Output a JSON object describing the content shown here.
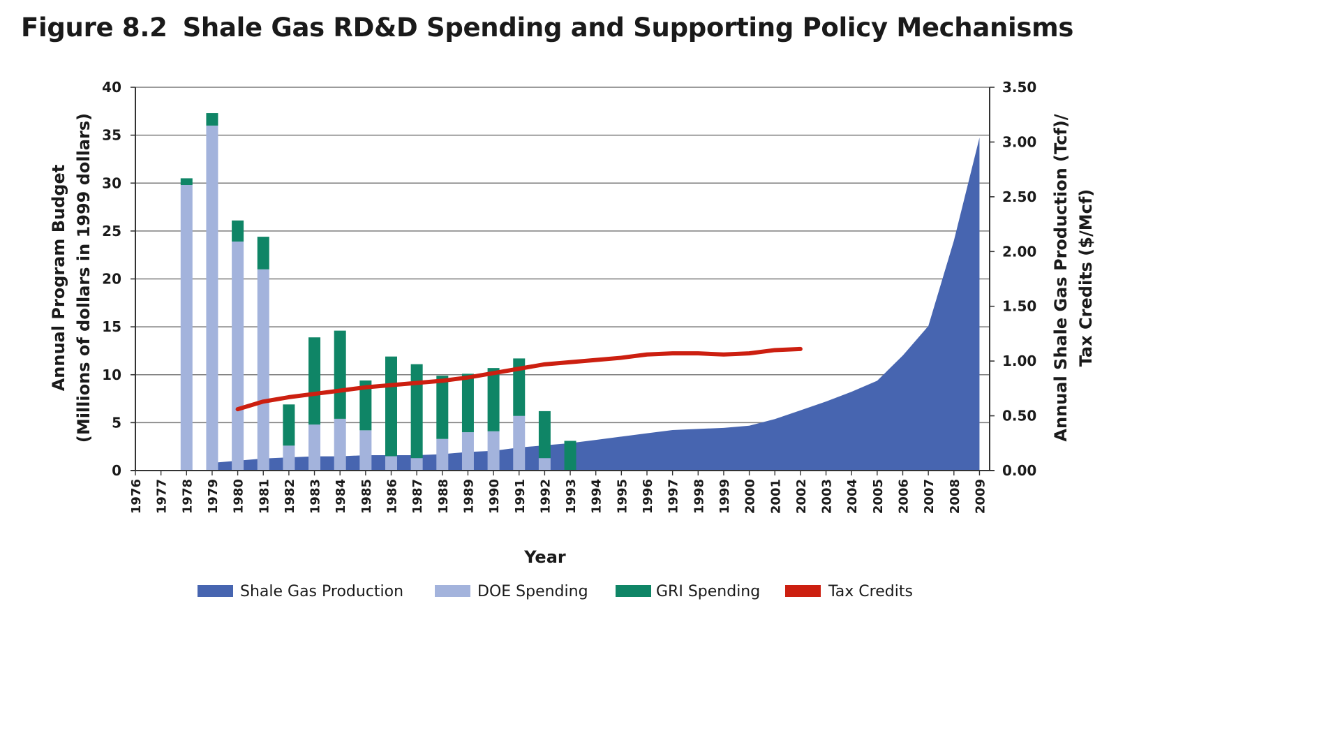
{
  "title": {
    "figure_number": "Figure 8.2",
    "text": "Shale Gas RD&D Spending and Supporting Policy Mechanisms"
  },
  "colors": {
    "production": "#4765b0",
    "doe": "#a3b3dc",
    "gri": "#0f8566",
    "tax": "#cc1f10",
    "grid": "#7a7a7a",
    "axis": "#333333"
  },
  "chart_data": {
    "type": "bar",
    "title": "Shale Gas RD&D Spending and Supporting Policy Mechanisms",
    "xlabel": "Year",
    "ylabel_lines": [
      "Annual Program Budget",
      "(Millions of dollars in 1999 dollars)"
    ],
    "y2label_lines": [
      "Annual Shale Gas Production (Tcf)/",
      "Tax Credits ($/Mcf)"
    ],
    "ylim": [
      0,
      40
    ],
    "y_ticks": [
      0,
      5,
      10,
      15,
      20,
      25,
      30,
      35,
      40
    ],
    "y2lim": [
      0,
      3.5
    ],
    "y2_ticks": [
      "0.00",
      "0.50",
      "1.00",
      "1.50",
      "2.00",
      "2.50",
      "3.00",
      "3.50"
    ],
    "grid": true,
    "legend_position": "bottom",
    "categories": [
      1976,
      1977,
      1978,
      1979,
      1980,
      1981,
      1982,
      1983,
      1984,
      1985,
      1986,
      1987,
      1988,
      1989,
      1990,
      1991,
      1992,
      1993,
      1994,
      1995,
      1996,
      1997,
      1998,
      1999,
      2000,
      2001,
      2002,
      2003,
      2004,
      2005,
      2006,
      2007,
      2008,
      2009
    ],
    "series": [
      {
        "name": "Shale Gas Production",
        "type": "area",
        "axis": "right",
        "x": [
          1979,
          1980,
          1981,
          1982,
          1983,
          1984,
          1985,
          1986,
          1987,
          1988,
          1989,
          1990,
          1991,
          1992,
          1993,
          1994,
          1995,
          1996,
          1997,
          1998,
          1999,
          2000,
          2001,
          2002,
          2003,
          2004,
          2005,
          2006,
          2007,
          2008,
          2009
        ],
        "values": [
          0.07,
          0.09,
          0.11,
          0.12,
          0.13,
          0.13,
          0.14,
          0.14,
          0.14,
          0.15,
          0.17,
          0.18,
          0.21,
          0.23,
          0.25,
          0.28,
          0.31,
          0.34,
          0.37,
          0.38,
          0.39,
          0.41,
          0.47,
          0.55,
          0.63,
          0.72,
          0.82,
          1.05,
          1.32,
          2.1,
          3.04
        ]
      },
      {
        "name": "DOE Spending",
        "type": "stacked-bar",
        "axis": "left",
        "x": [
          1978,
          1979,
          1980,
          1981,
          1982,
          1983,
          1984,
          1985,
          1986,
          1987,
          1988,
          1989,
          1990,
          1991,
          1992,
          1993
        ],
        "values": [
          29.8,
          36.0,
          23.9,
          21.0,
          2.6,
          4.8,
          5.4,
          4.2,
          1.5,
          1.3,
          3.3,
          4.0,
          4.1,
          5.7,
          1.3,
          0
        ]
      },
      {
        "name": "GRI Spending",
        "type": "stacked-bar",
        "axis": "left",
        "x": [
          1978,
          1979,
          1980,
          1981,
          1982,
          1983,
          1984,
          1985,
          1986,
          1987,
          1988,
          1989,
          1990,
          1991,
          1992,
          1993
        ],
        "values": [
          0.7,
          1.3,
          2.2,
          3.4,
          4.3,
          9.1,
          9.2,
          5.2,
          10.4,
          9.8,
          6.6,
          6.1,
          6.6,
          6.0,
          4.9,
          3.1
        ]
      },
      {
        "name": "Tax Credits",
        "type": "line",
        "axis": "right",
        "x": [
          1980,
          1981,
          1982,
          1983,
          1984,
          1985,
          1986,
          1987,
          1988,
          1989,
          1990,
          1991,
          1992,
          1993,
          1994,
          1995,
          1996,
          1997,
          1998,
          1999,
          2000,
          2001,
          2002
        ],
        "values": [
          0.56,
          0.63,
          0.67,
          0.7,
          0.73,
          0.76,
          0.78,
          0.8,
          0.82,
          0.85,
          0.89,
          0.93,
          0.97,
          0.99,
          1.01,
          1.03,
          1.06,
          1.07,
          1.07,
          1.06,
          1.07,
          1.1,
          1.11
        ]
      }
    ]
  }
}
